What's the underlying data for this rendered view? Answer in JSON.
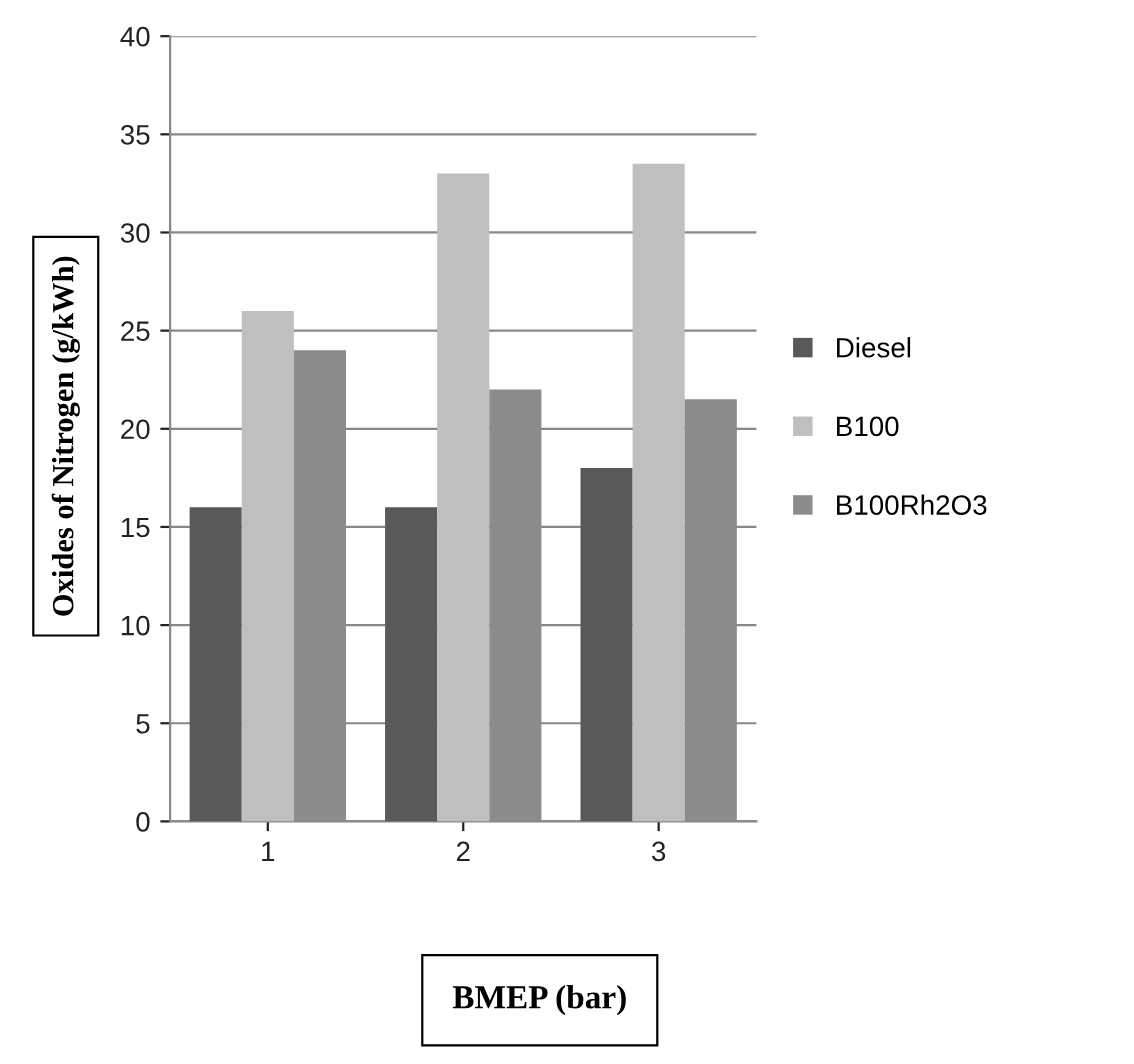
{
  "chart_data": {
    "type": "bar",
    "xlabel": "BMEP (bar)",
    "ylabel": "Oxides of Nitrogen (g/kWh)",
    "categories": [
      "1",
      "2",
      "3"
    ],
    "series": [
      {
        "name": "Diesel",
        "color": "#595959",
        "values": [
          16,
          16,
          18
        ]
      },
      {
        "name": "B100",
        "color": "#bfbfbf",
        "values": [
          26,
          33,
          33.5
        ]
      },
      {
        "name": "B100Rh2O3",
        "color": "#8c8c8c",
        "values": [
          24,
          22,
          21.5
        ]
      }
    ],
    "ylim": [
      0,
      40
    ],
    "yticks": [
      0,
      5,
      10,
      15,
      20,
      25,
      30,
      35,
      40
    ],
    "grid": "y",
    "legend": "right"
  }
}
